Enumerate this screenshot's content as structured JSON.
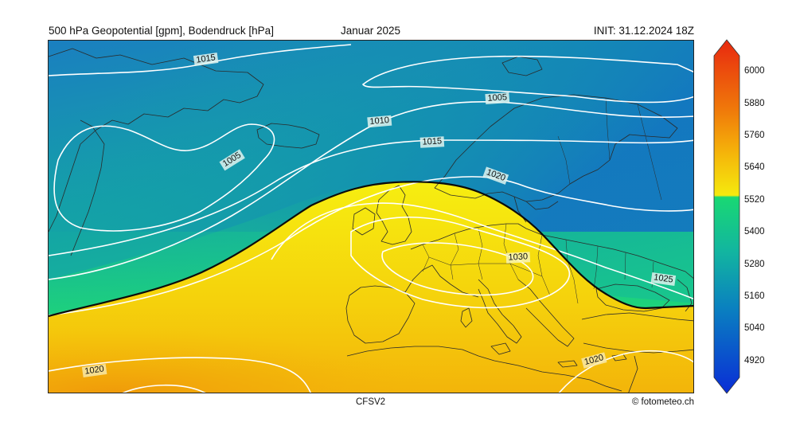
{
  "header": {
    "title_left": "500 hPa Geopotential [gpm], Bodendruck [hPa]",
    "title_center": "Januar 2025",
    "title_right": "INIT: 31.12.2024 18Z"
  },
  "footer": {
    "model": "CFSV2",
    "credit": "© fotometeo.ch"
  },
  "map": {
    "region": "Europe and North Atlantic",
    "highlight_contour_gpm": 5520,
    "isobar_labels": [
      "1015",
      "1005",
      "1010",
      "1015",
      "1020",
      "1005",
      "1030",
      "1025",
      "1020",
      "1020"
    ],
    "isobar_label_list": [
      {
        "text": "1015"
      },
      {
        "text": "1005"
      },
      {
        "text": "1010"
      },
      {
        "text": "1015"
      },
      {
        "text": "1005"
      },
      {
        "text": "1020"
      },
      {
        "text": "1030"
      },
      {
        "text": "1025"
      },
      {
        "text": "1020"
      },
      {
        "text": "1020"
      }
    ]
  },
  "colorbar": {
    "ticks": [
      "6000",
      "5880",
      "5760",
      "5640",
      "5520",
      "5400",
      "5280",
      "5160",
      "5040",
      "4920"
    ],
    "tick_values": [
      6000,
      5880,
      5760,
      5640,
      5520,
      5400,
      5280,
      5160,
      5040,
      4920
    ],
    "range": [
      4860,
      6060
    ],
    "colors": {
      "max": "#e8290f",
      "high": "#f5a009",
      "mid": "#f5ea0e",
      "low_green": "#19d873",
      "teal": "#12a7a3",
      "blue": "#0a72c8",
      "min": "#0a2dd6"
    }
  }
}
